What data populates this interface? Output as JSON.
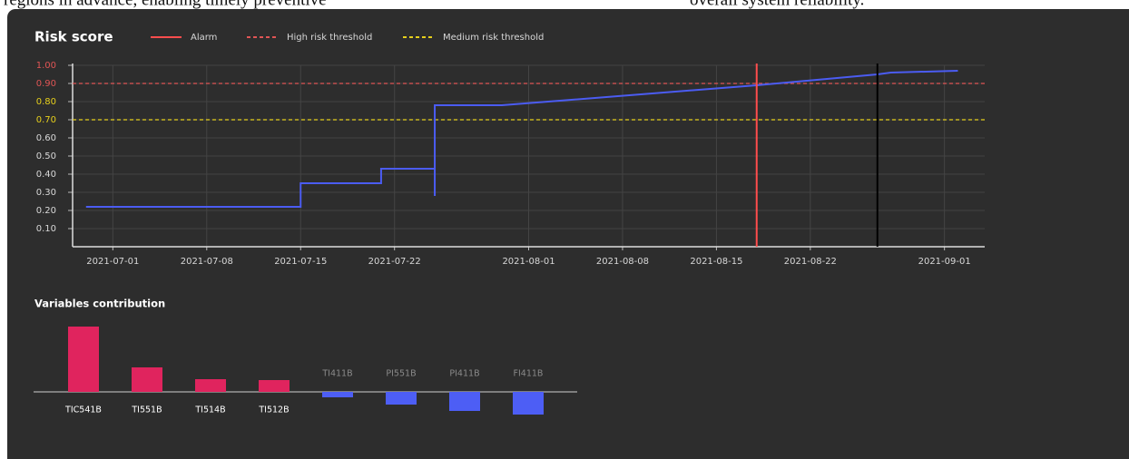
{
  "page_text": [
    "regions in advance, enabling timely preventive",
    "overall system reliability."
  ],
  "chart_data": [
    {
      "type": "line",
      "title": "Risk score",
      "x": [
        "2021-06-29",
        "2021-07-15",
        "2021-07-15",
        "2021-07-21",
        "2021-07-21",
        "2021-07-25",
        "2021-07-25",
        "2021-07-25",
        "2021-07-30",
        "2021-08-18",
        "2021-08-27",
        "2021-08-28",
        "2021-09-02"
      ],
      "series": [
        {
          "color": "#4b5cf2",
          "values": [
            0.22,
            0.22,
            0.35,
            0.35,
            0.43,
            0.43,
            0.28,
            0.78,
            0.78,
            0.89,
            0.95,
            0.96,
            0.97
          ]
        }
      ],
      "alarm": {
        "name": "Alarm",
        "x": "2021-08-18",
        "color": "#ff4d4d"
      },
      "thresholds": [
        {
          "name": "High risk threshold",
          "value": 0.9,
          "color": "#e05555"
        },
        {
          "name": "Medium risk threshold",
          "value": 0.7,
          "color": "#e6cf1c"
        }
      ],
      "cursor": {
        "x": "2021-08-27",
        "color": "#000000"
      },
      "xlim": [
        "2021-06-28",
        "2021-09-04"
      ],
      "xticks": [
        "2021-07-01",
        "2021-07-08",
        "2021-07-15",
        "2021-07-22",
        "2021-08-01",
        "2021-08-08",
        "2021-08-15",
        "2021-08-22",
        "2021-09-01"
      ],
      "ylim": [
        0,
        1
      ],
      "yticks": [
        {
          "value": 0.1,
          "label": "0.10"
        },
        {
          "value": 0.2,
          "label": "0.20"
        },
        {
          "value": 0.3,
          "label": "0.30"
        },
        {
          "value": 0.4,
          "label": "0.40"
        },
        {
          "value": 0.5,
          "label": "0.50"
        },
        {
          "value": 0.6,
          "label": "0.60"
        },
        {
          "value": 0.7,
          "label": "0.70"
        },
        {
          "value": 0.8,
          "label": "0.80"
        },
        {
          "value": 0.9,
          "label": "0.90"
        },
        {
          "value": 1,
          "label": "1.00"
        }
      ],
      "grid": true
    },
    {
      "type": "bar",
      "title": "Variables contribution",
      "categories": [
        "TIC541B",
        "TI551B",
        "TI514B",
        "TI512B",
        "TI411B",
        "PI551B",
        "PI411B",
        "FI411B"
      ],
      "values": [
        0.72,
        0.27,
        0.14,
        0.13,
        -0.06,
        -0.14,
        -0.21,
        -0.25
      ],
      "positive_color": "#e0245e",
      "negative_color": "#4d5ef5"
    }
  ]
}
